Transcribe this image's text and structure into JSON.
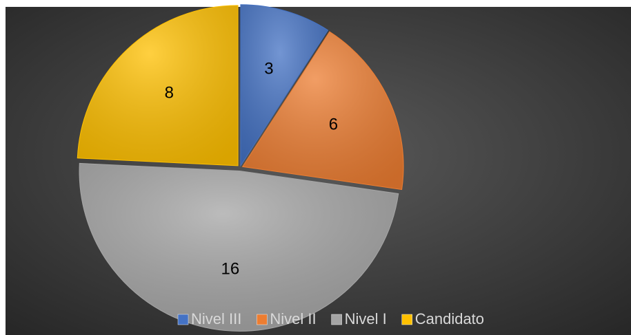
{
  "chart_data": {
    "type": "pie",
    "categories": [
      "Nivel III",
      "Nivel II",
      "Nivel I",
      "Candidato"
    ],
    "values": [
      3,
      6,
      16,
      8
    ],
    "colors": [
      "#4472c4",
      "#ed7d31",
      "#a5a5a5",
      "#ffc000"
    ],
    "legend": "bottom"
  }
}
